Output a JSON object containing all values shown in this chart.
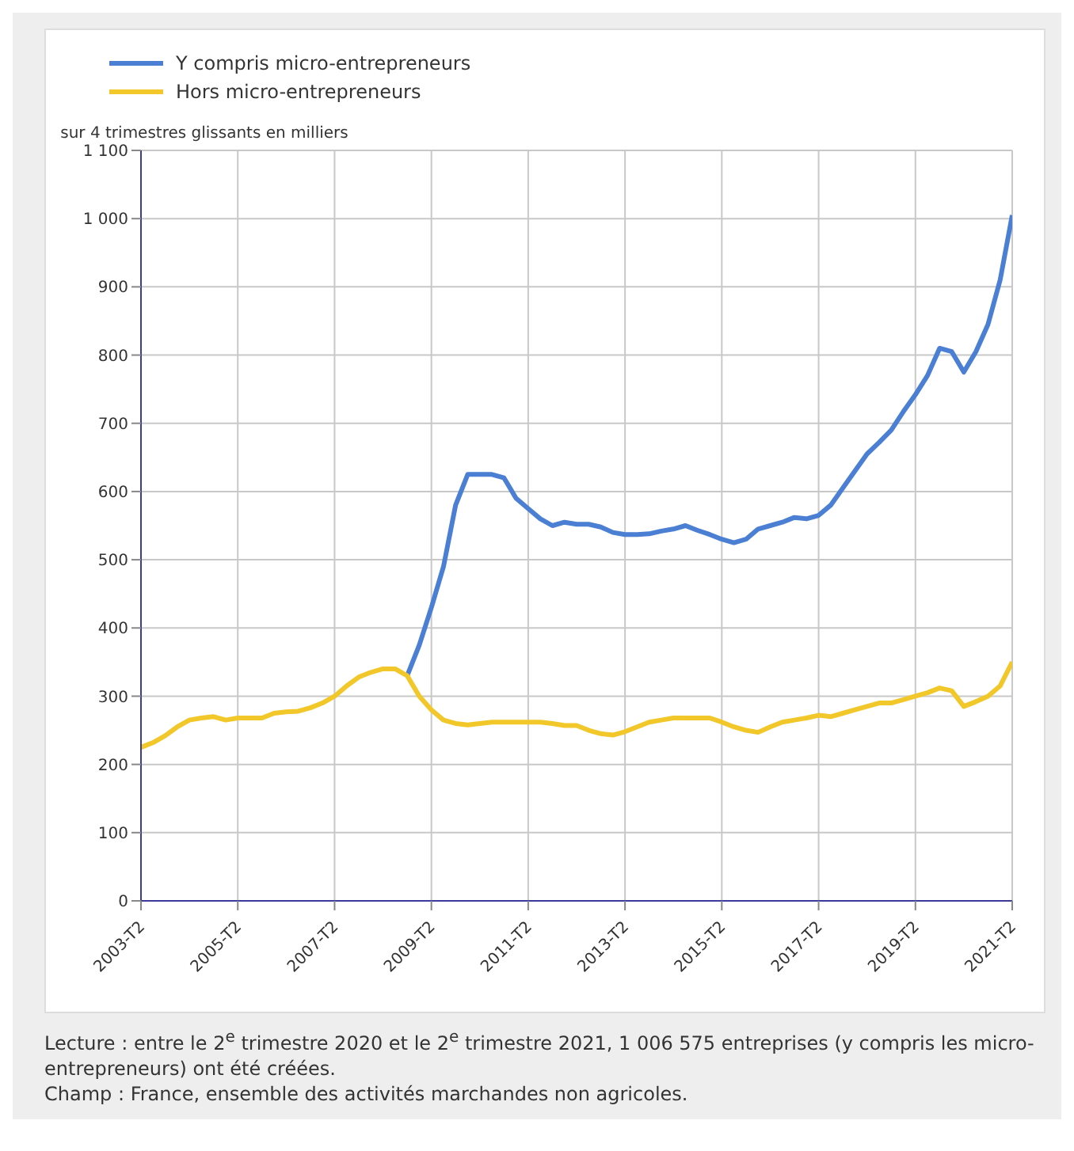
{
  "chart_data": {
    "type": "line",
    "categories": [
      "2003-T2",
      null,
      null,
      null,
      null,
      null,
      null,
      null,
      "2005-T2",
      null,
      null,
      null,
      null,
      null,
      null,
      null,
      "2007-T2",
      null,
      null,
      null,
      null,
      null,
      null,
      null,
      "2009-T2",
      null,
      null,
      null,
      null,
      null,
      null,
      null,
      "2011-T2",
      null,
      null,
      null,
      null,
      null,
      null,
      null,
      "2013-T2",
      null,
      null,
      null,
      null,
      null,
      null,
      null,
      "2015-T2",
      null,
      null,
      null,
      null,
      null,
      null,
      null,
      "2017-T2",
      null,
      null,
      null,
      null,
      null,
      null,
      null,
      "2019-T2",
      null,
      null,
      null,
      null,
      null,
      null,
      null,
      "2021-T2"
    ],
    "series": [
      {
        "name": "Y compris micro-entrepreneurs",
        "color": "#4a7fd4",
        "values": [
          null,
          null,
          null,
          null,
          null,
          null,
          null,
          null,
          null,
          null,
          null,
          null,
          null,
          null,
          null,
          null,
          null,
          null,
          null,
          null,
          null,
          null,
          330,
          375,
          430,
          490,
          580,
          625,
          625,
          625,
          620,
          590,
          575,
          560,
          550,
          555,
          552,
          552,
          548,
          540,
          537,
          537,
          538,
          542,
          545,
          550,
          543,
          537,
          530,
          525,
          530,
          545,
          550,
          555,
          562,
          560,
          565,
          580,
          605,
          630,
          655,
          672,
          690,
          717,
          742,
          770,
          810,
          805,
          775,
          805,
          845,
          910,
          1005
        ]
      },
      {
        "name": "Hors micro-entrepreneurs",
        "color": "#f2c72a",
        "values": [
          225,
          232,
          242,
          255,
          265,
          268,
          270,
          265,
          268,
          268,
          268,
          275,
          277,
          278,
          283,
          290,
          300,
          315,
          328,
          335,
          340,
          340,
          330,
          300,
          280,
          265,
          260,
          258,
          260,
          262,
          262,
          262,
          262,
          262,
          260,
          257,
          257,
          250,
          245,
          243,
          248,
          255,
          262,
          265,
          268,
          268,
          268,
          268,
          262,
          255,
          250,
          247,
          255,
          262,
          265,
          268,
          272,
          270,
          275,
          280,
          285,
          290,
          290,
          295,
          300,
          305,
          312,
          308,
          285,
          292,
          300,
          315,
          350
        ]
      }
    ],
    "ylabel": "sur 4 trimestres glissants en milliers",
    "ylim": [
      0,
      1100
    ],
    "yticks": [
      0,
      100,
      200,
      300,
      400,
      500,
      600,
      700,
      800,
      900,
      {
        "value": 1000,
        "label": "1 000"
      },
      {
        "value": 1100,
        "label": "1 100"
      }
    ],
    "grid": true,
    "legend": "top left",
    "marker": "none",
    "line_style": "solid",
    "annotations": [
      "Lecture : entre le 2$^{e}$ trimestre 2020 et le 2$^{e}$ trimestre 2021, 1 006 575 entreprises (y compris les micro-entrepreneurs) ont été créées.",
      "Champ : France, ensemble des activités marchandes non agricoles."
    ]
  }
}
